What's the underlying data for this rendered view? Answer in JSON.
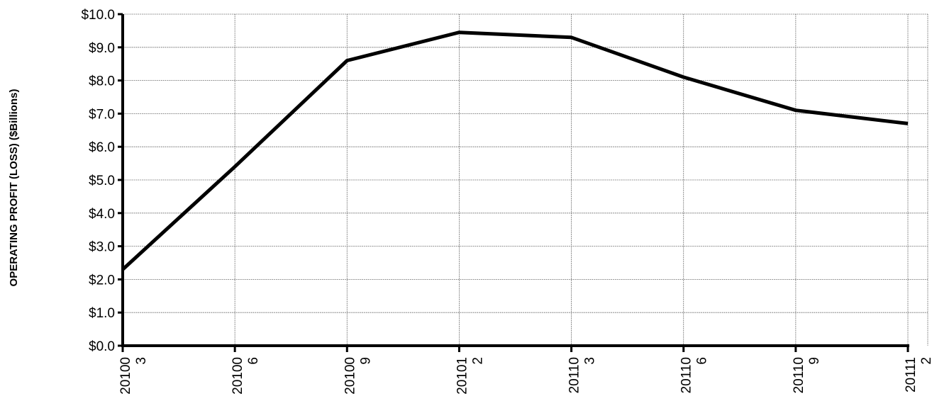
{
  "chart_data": {
    "type": "line",
    "title": "",
    "xlabel": "",
    "ylabel": "OPERATING PROFIT (LOSS) ($Billions)",
    "categories": [
      [
        "20100",
        "3"
      ],
      [
        "20100",
        "6"
      ],
      [
        "20100",
        "9"
      ],
      [
        "20101",
        "2"
      ],
      [
        "20110",
        "3"
      ],
      [
        "20110",
        "6"
      ],
      [
        "20110",
        "9"
      ],
      [
        "20111",
        "2"
      ]
    ],
    "series": [
      {
        "values": [
          2.3,
          5.4,
          8.6,
          9.45,
          9.3,
          8.1,
          7.1,
          6.7
        ]
      }
    ],
    "yticks": [
      "$0.0",
      "$1.0",
      "$2.0",
      "$3.0",
      "$4.0",
      "$5.0",
      "$6.0",
      "$7.0",
      "$8.0",
      "$9.0",
      "$10.0"
    ],
    "ylim": [
      0,
      10
    ],
    "grid": true,
    "line_color": "#000000"
  }
}
